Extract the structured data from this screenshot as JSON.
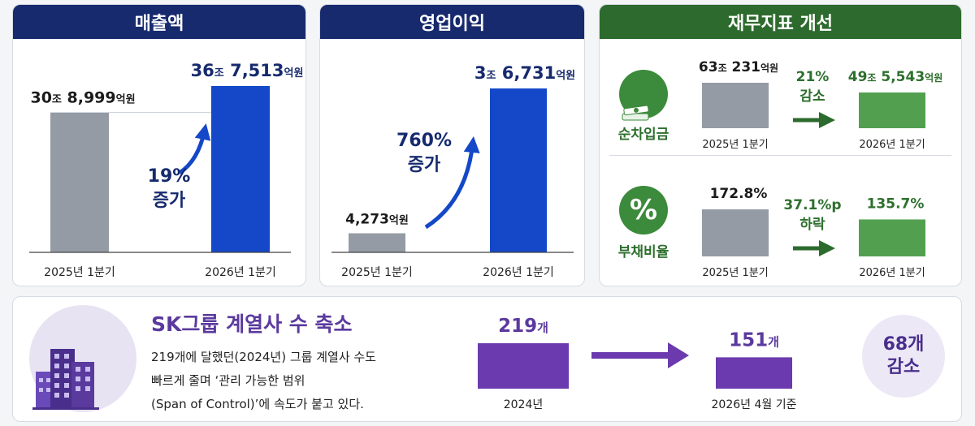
{
  "colors": {
    "navy_header": "#172a6e",
    "green_header": "#2d6a2d",
    "gray_bar": "#959ba5",
    "blue_bar": "#1448c9",
    "green_bar": "#52a04f",
    "purple_bar": "#6b3aae",
    "navy_text": "#162a6e",
    "green_text": "#2e6f2e",
    "purple_text": "#5b3a9e"
  },
  "revenue": {
    "header": "매출액",
    "change_pct": "19%",
    "change_word": "증가",
    "chart_data": {
      "type": "bar",
      "categories": [
        "2025년 1분기",
        "2026년 1분기"
      ],
      "values": [
        30.8999,
        36.7513
      ],
      "value_labels": [
        {
          "num1": "30",
          "unit1": "조",
          "num2": " 8,999",
          "unit2": "억원"
        },
        {
          "num1": "36",
          "unit1": "조",
          "num2": " 7,513",
          "unit2": "억원"
        }
      ]
    }
  },
  "operating_profit": {
    "header": "영업이익",
    "change_pct": "760%",
    "change_word": "증가",
    "chart_data": {
      "type": "bar",
      "categories": [
        "2025년 1분기",
        "2026년 1분기"
      ],
      "values": [
        0.4273,
        3.6731
      ],
      "value_labels": [
        {
          "num1": "",
          "unit1": "",
          "num2": "4,273",
          "unit2": "억원"
        },
        {
          "num1": "3",
          "unit1": "조",
          "num2": " 6,731",
          "unit2": "억원"
        }
      ]
    }
  },
  "financial": {
    "header": "재무지표 개선",
    "net_debt": {
      "label": "순차입금",
      "icon": "cash-stack-icon",
      "change_line1": "21%",
      "change_line2": "감소",
      "chart_data": {
        "type": "bar",
        "categories": [
          "2025년 1분기",
          "2026년 1분기"
        ],
        "values": [
          63.0231,
          49.5543
        ],
        "value_labels": [
          {
            "num1": "63",
            "unit1": "조",
            "num2": " 231",
            "unit2": "억원"
          },
          {
            "num1": "49",
            "unit1": "조",
            "num2": " 5,543",
            "unit2": "억원"
          }
        ]
      }
    },
    "debt_ratio": {
      "label": "부채비율",
      "icon_glyph": "%",
      "change_line1": "37.1%p",
      "change_line2": "하락",
      "chart_data": {
        "type": "bar",
        "categories": [
          "2025년 1분기",
          "2026년 1분기"
        ],
        "values": [
          172.8,
          135.7
        ],
        "value_labels": [
          {
            "num1": "172.8",
            "unit1": "",
            "num2": "%",
            "unit2": ""
          },
          {
            "num1": "135.7",
            "unit1": "",
            "num2": "%",
            "unit2": ""
          }
        ]
      }
    }
  },
  "sk": {
    "title": "SK그룹 계열사 수 축소",
    "desc": [
      "219개에 달했던(2024년) 그룹 계열사 수도",
      "빠르게 줄며 ‘관리 가능한 범위",
      "(Span of Control)’에 속도가 붙고 있다."
    ],
    "badge_line1": "68개",
    "badge_line2": "감소",
    "chart_data": {
      "type": "bar",
      "categories": [
        "2024년",
        "2026년 4월 기준"
      ],
      "values": [
        219,
        151
      ],
      "value_labels": [
        {
          "num": "219",
          "unit": "개"
        },
        {
          "num": "151",
          "unit": "개"
        }
      ]
    }
  }
}
